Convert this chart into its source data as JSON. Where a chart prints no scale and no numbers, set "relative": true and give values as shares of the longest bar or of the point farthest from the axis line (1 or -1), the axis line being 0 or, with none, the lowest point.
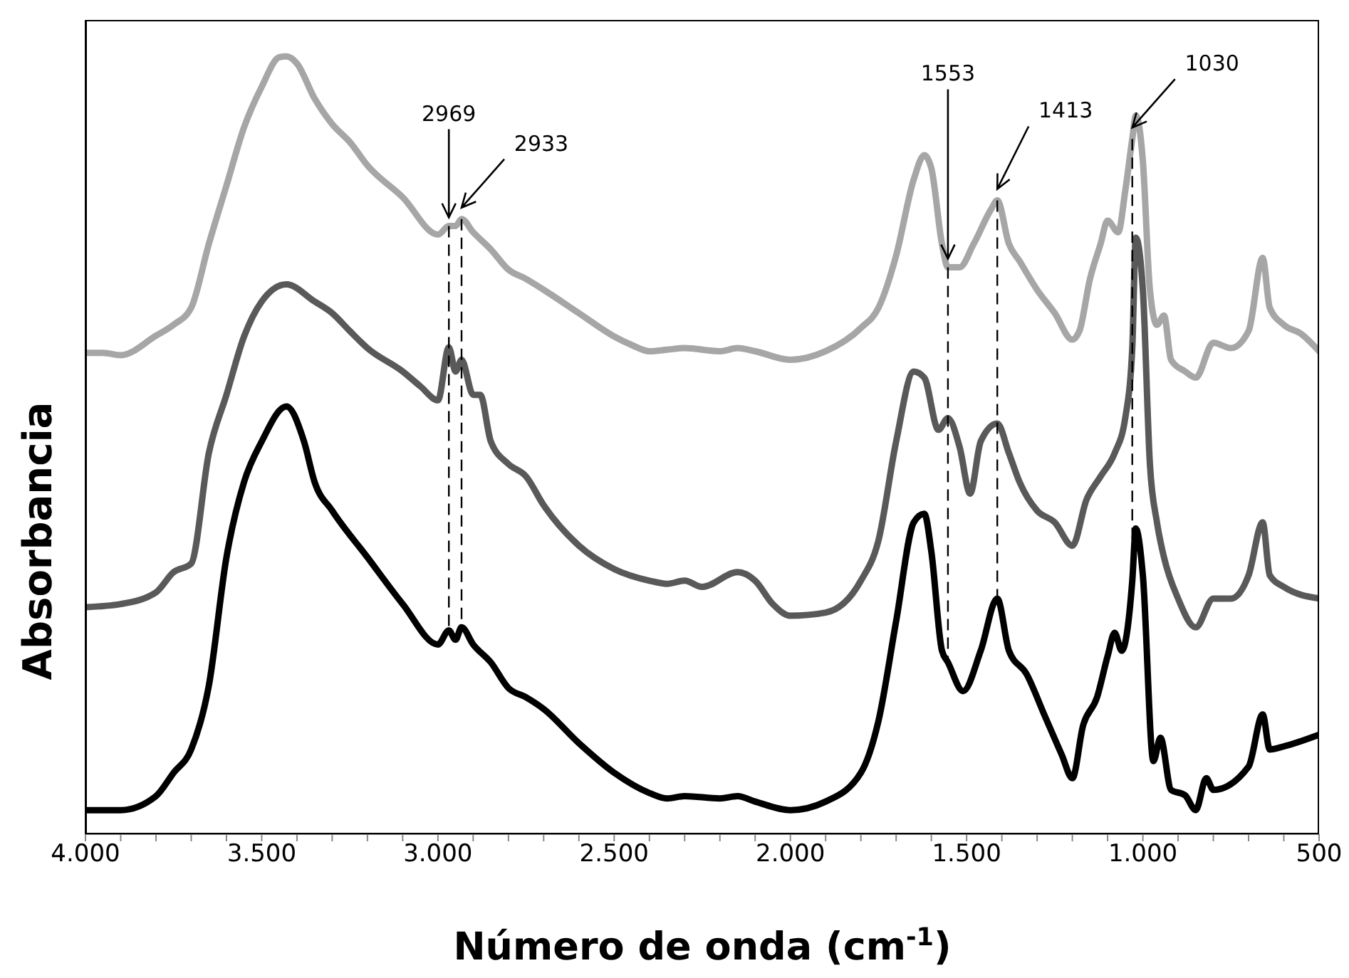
{
  "chart_data": {
    "type": "line",
    "relative": true,
    "xlabel": "Número de onda (cm$^{-1}$)",
    "ylabel": "Absorbancia",
    "xlim": [
      4000,
      500
    ],
    "xticks": [
      {
        "value": 4000,
        "label": "4.000"
      },
      {
        "value": 3900,
        "label": null
      },
      {
        "value": 3800,
        "label": null
      },
      {
        "value": 3700,
        "label": null
      },
      {
        "value": 3600,
        "label": null
      },
      {
        "value": 3500,
        "label": "3.500"
      },
      {
        "value": 3400,
        "label": null
      },
      {
        "value": 3300,
        "label": null
      },
      {
        "value": 3200,
        "label": null
      },
      {
        "value": 3100,
        "label": null
      },
      {
        "value": 3000,
        "label": "3.000"
      },
      {
        "value": 2900,
        "label": null
      },
      {
        "value": 2800,
        "label": null
      },
      {
        "value": 2700,
        "label": null
      },
      {
        "value": 2600,
        "label": null
      },
      {
        "value": 2500,
        "label": "2.500"
      },
      {
        "value": 2400,
        "label": null
      },
      {
        "value": 2300,
        "label": null
      },
      {
        "value": 2200,
        "label": null
      },
      {
        "value": 2100,
        "label": null
      },
      {
        "value": 2000,
        "label": "2.000"
      },
      {
        "value": 1900,
        "label": null
      },
      {
        "value": 1800,
        "label": null
      },
      {
        "value": 1700,
        "label": null
      },
      {
        "value": 1600,
        "label": null
      },
      {
        "value": 1500,
        "label": "1.500"
      },
      {
        "value": 1400,
        "label": null
      },
      {
        "value": 1300,
        "label": null
      },
      {
        "value": 1200,
        "label": null
      },
      {
        "value": 1100,
        "label": null
      },
      {
        "value": 1000,
        "label": "1.000"
      },
      {
        "value": 900,
        "label": null
      },
      {
        "value": 800,
        "label": null
      },
      {
        "value": 700,
        "label": null
      },
      {
        "value": 600,
        "label": null
      },
      500
    ],
    "marker": "none",
    "line_style": "solid",
    "ref_lines": [
      {
        "axis": "x",
        "value": 2969,
        "line_style": "dashed",
        "color": "#000000"
      },
      {
        "axis": "x",
        "value": 2933,
        "line_style": "dashed",
        "color": "#000000"
      },
      {
        "axis": "x",
        "value": 1553,
        "line_style": "dashed",
        "color": "#000000"
      },
      {
        "axis": "x",
        "value": 1413,
        "line_style": "dashed",
        "color": "#000000"
      },
      {
        "axis": "x",
        "value": 1030,
        "line_style": "dashed",
        "color": "#000000"
      }
    ],
    "series": [
      {
        "color": "#a6a6a6",
        "x": [
          4000,
          3950,
          3900,
          3800,
          3750,
          3700,
          3650,
          3600,
          3550,
          3500,
          3450,
          3430,
          3400,
          3350,
          3300,
          3250,
          3200,
          3100,
          3000,
          2969,
          2950,
          2933,
          2900,
          2850,
          2800,
          2750,
          2700,
          2600,
          2500,
          2450,
          2400,
          2350,
          2300,
          2200,
          2150,
          2100,
          2000,
          1900,
          1800,
          1750,
          1700,
          1650,
          1620,
          1600,
          1570,
          1553,
          1520,
          1480,
          1430,
          1413,
          1380,
          1350,
          1300,
          1250,
          1200,
          1180,
          1150,
          1120,
          1100,
          1070,
          1050,
          1030,
          1020,
          1000,
          980,
          960,
          940,
          920,
          880,
          850,
          800,
          750,
          700,
          660,
          640,
          600,
          550,
          500
        ],
        "values": [
          0.619,
          0.619,
          0.616,
          0.641,
          0.655,
          0.677,
          0.759,
          0.834,
          0.909,
          0.961,
          0.999,
          1,
          0.991,
          0.946,
          0.913,
          0.89,
          0.86,
          0.819,
          0.771,
          0.782,
          0.782,
          0.791,
          0.774,
          0.752,
          0.726,
          0.714,
          0.7,
          0.67,
          0.64,
          0.629,
          0.621,
          0.623,
          0.625,
          0.621,
          0.625,
          0.621,
          0.61,
          0.621,
          0.651,
          0.677,
          0.744,
          0.842,
          0.873,
          0.856,
          0.759,
          0.729,
          0.729,
          0.759,
          0.804,
          0.815,
          0.759,
          0.737,
          0.7,
          0.67,
          0.636,
          0.647,
          0.714,
          0.759,
          0.789,
          0.774,
          0.827,
          0.894,
          0.924,
          0.866,
          0.7,
          0.655,
          0.667,
          0.61,
          0.595,
          0.587,
          0.632,
          0.625,
          0.647,
          0.741,
          0.677,
          0.655,
          0.643,
          0.621
        ]
      },
      {
        "color": "#595959",
        "x": [
          4000,
          3900,
          3800,
          3750,
          3700,
          3650,
          3600,
          3550,
          3500,
          3430,
          3350,
          3300,
          3250,
          3200,
          3100,
          3050,
          3000,
          2969,
          2950,
          2933,
          2900,
          2880,
          2850,
          2800,
          2750,
          2700,
          2600,
          2500,
          2400,
          2350,
          2300,
          2250,
          2150,
          2100,
          2050,
          2000,
          1900,
          1800,
          1750,
          1700,
          1650,
          1620,
          1580,
          1553,
          1520,
          1490,
          1460,
          1413,
          1380,
          1350,
          1300,
          1250,
          1200,
          1160,
          1120,
          1080,
          1050,
          1030,
          1020,
          1000,
          980,
          960,
          940,
          900,
          850,
          800,
          750,
          700,
          660,
          640,
          600,
          500
        ],
        "values": [
          0.292,
          0.296,
          0.311,
          0.337,
          0.348,
          0.49,
          0.565,
          0.64,
          0.685,
          0.707,
          0.685,
          0.67,
          0.647,
          0.625,
          0.595,
          0.576,
          0.558,
          0.626,
          0.595,
          0.61,
          0.565,
          0.565,
          0.505,
          0.476,
          0.46,
          0.423,
          0.371,
          0.341,
          0.326,
          0.322,
          0.326,
          0.318,
          0.337,
          0.326,
          0.296,
          0.281,
          0.285,
          0.326,
          0.378,
          0.505,
          0.595,
          0.587,
          0.52,
          0.535,
          0.498,
          0.438,
          0.505,
          0.528,
          0.49,
          0.453,
          0.416,
          0.401,
          0.371,
          0.43,
          0.46,
          0.49,
          0.535,
          0.625,
          0.767,
          0.7,
          0.476,
          0.401,
          0.356,
          0.303,
          0.266,
          0.303,
          0.303,
          0.333,
          0.401,
          0.333,
          0.318,
          0.303
        ]
      },
      {
        "color": "#000000",
        "x": [
          4000,
          3900,
          3800,
          3750,
          3700,
          3650,
          3600,
          3550,
          3500,
          3430,
          3380,
          3350,
          3300,
          3200,
          3100,
          3000,
          2969,
          2950,
          2933,
          2900,
          2850,
          2800,
          2750,
          2700,
          2600,
          2500,
          2400,
          2350,
          2300,
          2200,
          2150,
          2100,
          2000,
          1900,
          1800,
          1750,
          1700,
          1650,
          1620,
          1600,
          1570,
          1553,
          1510,
          1460,
          1413,
          1380,
          1330,
          1280,
          1230,
          1200,
          1170,
          1130,
          1100,
          1080,
          1060,
          1030,
          1020,
          1000,
          970,
          950,
          920,
          880,
          850,
          820,
          800,
          700,
          660,
          640,
          600,
          500
        ],
        "values": [
          0.031,
          0.031,
          0.049,
          0.079,
          0.109,
          0.191,
          0.356,
          0.453,
          0.505,
          0.55,
          0.505,
          0.453,
          0.416,
          0.356,
          0.296,
          0.244,
          0.262,
          0.25,
          0.266,
          0.244,
          0.221,
          0.188,
          0.176,
          0.161,
          0.117,
          0.079,
          0.053,
          0.046,
          0.049,
          0.046,
          0.049,
          0.042,
          0.031,
          0.042,
          0.079,
          0.146,
          0.274,
          0.401,
          0.412,
          0.363,
          0.236,
          0.221,
          0.184,
          0.236,
          0.303,
          0.236,
          0.206,
          0.154,
          0.102,
          0.072,
          0.139,
          0.176,
          0.229,
          0.259,
          0.236,
          0.326,
          0.393,
          0.333,
          0.094,
          0.124,
          0.057,
          0.05,
          0.031,
          0.072,
          0.057,
          0.087,
          0.154,
          0.109,
          0.113,
          0.128
        ]
      }
    ],
    "annotations": [
      {
        "text": "2969",
        "x": 2969,
        "y": 0.782
      },
      {
        "text": "2933",
        "x": 2933,
        "y": 0.791
      },
      {
        "text": "1553",
        "x": 1553,
        "y": 0.729
      },
      {
        "text": "1413",
        "x": 1413,
        "y": 0.815
      },
      {
        "text": "1030",
        "x": 1030,
        "y": 0.894
      }
    ]
  }
}
